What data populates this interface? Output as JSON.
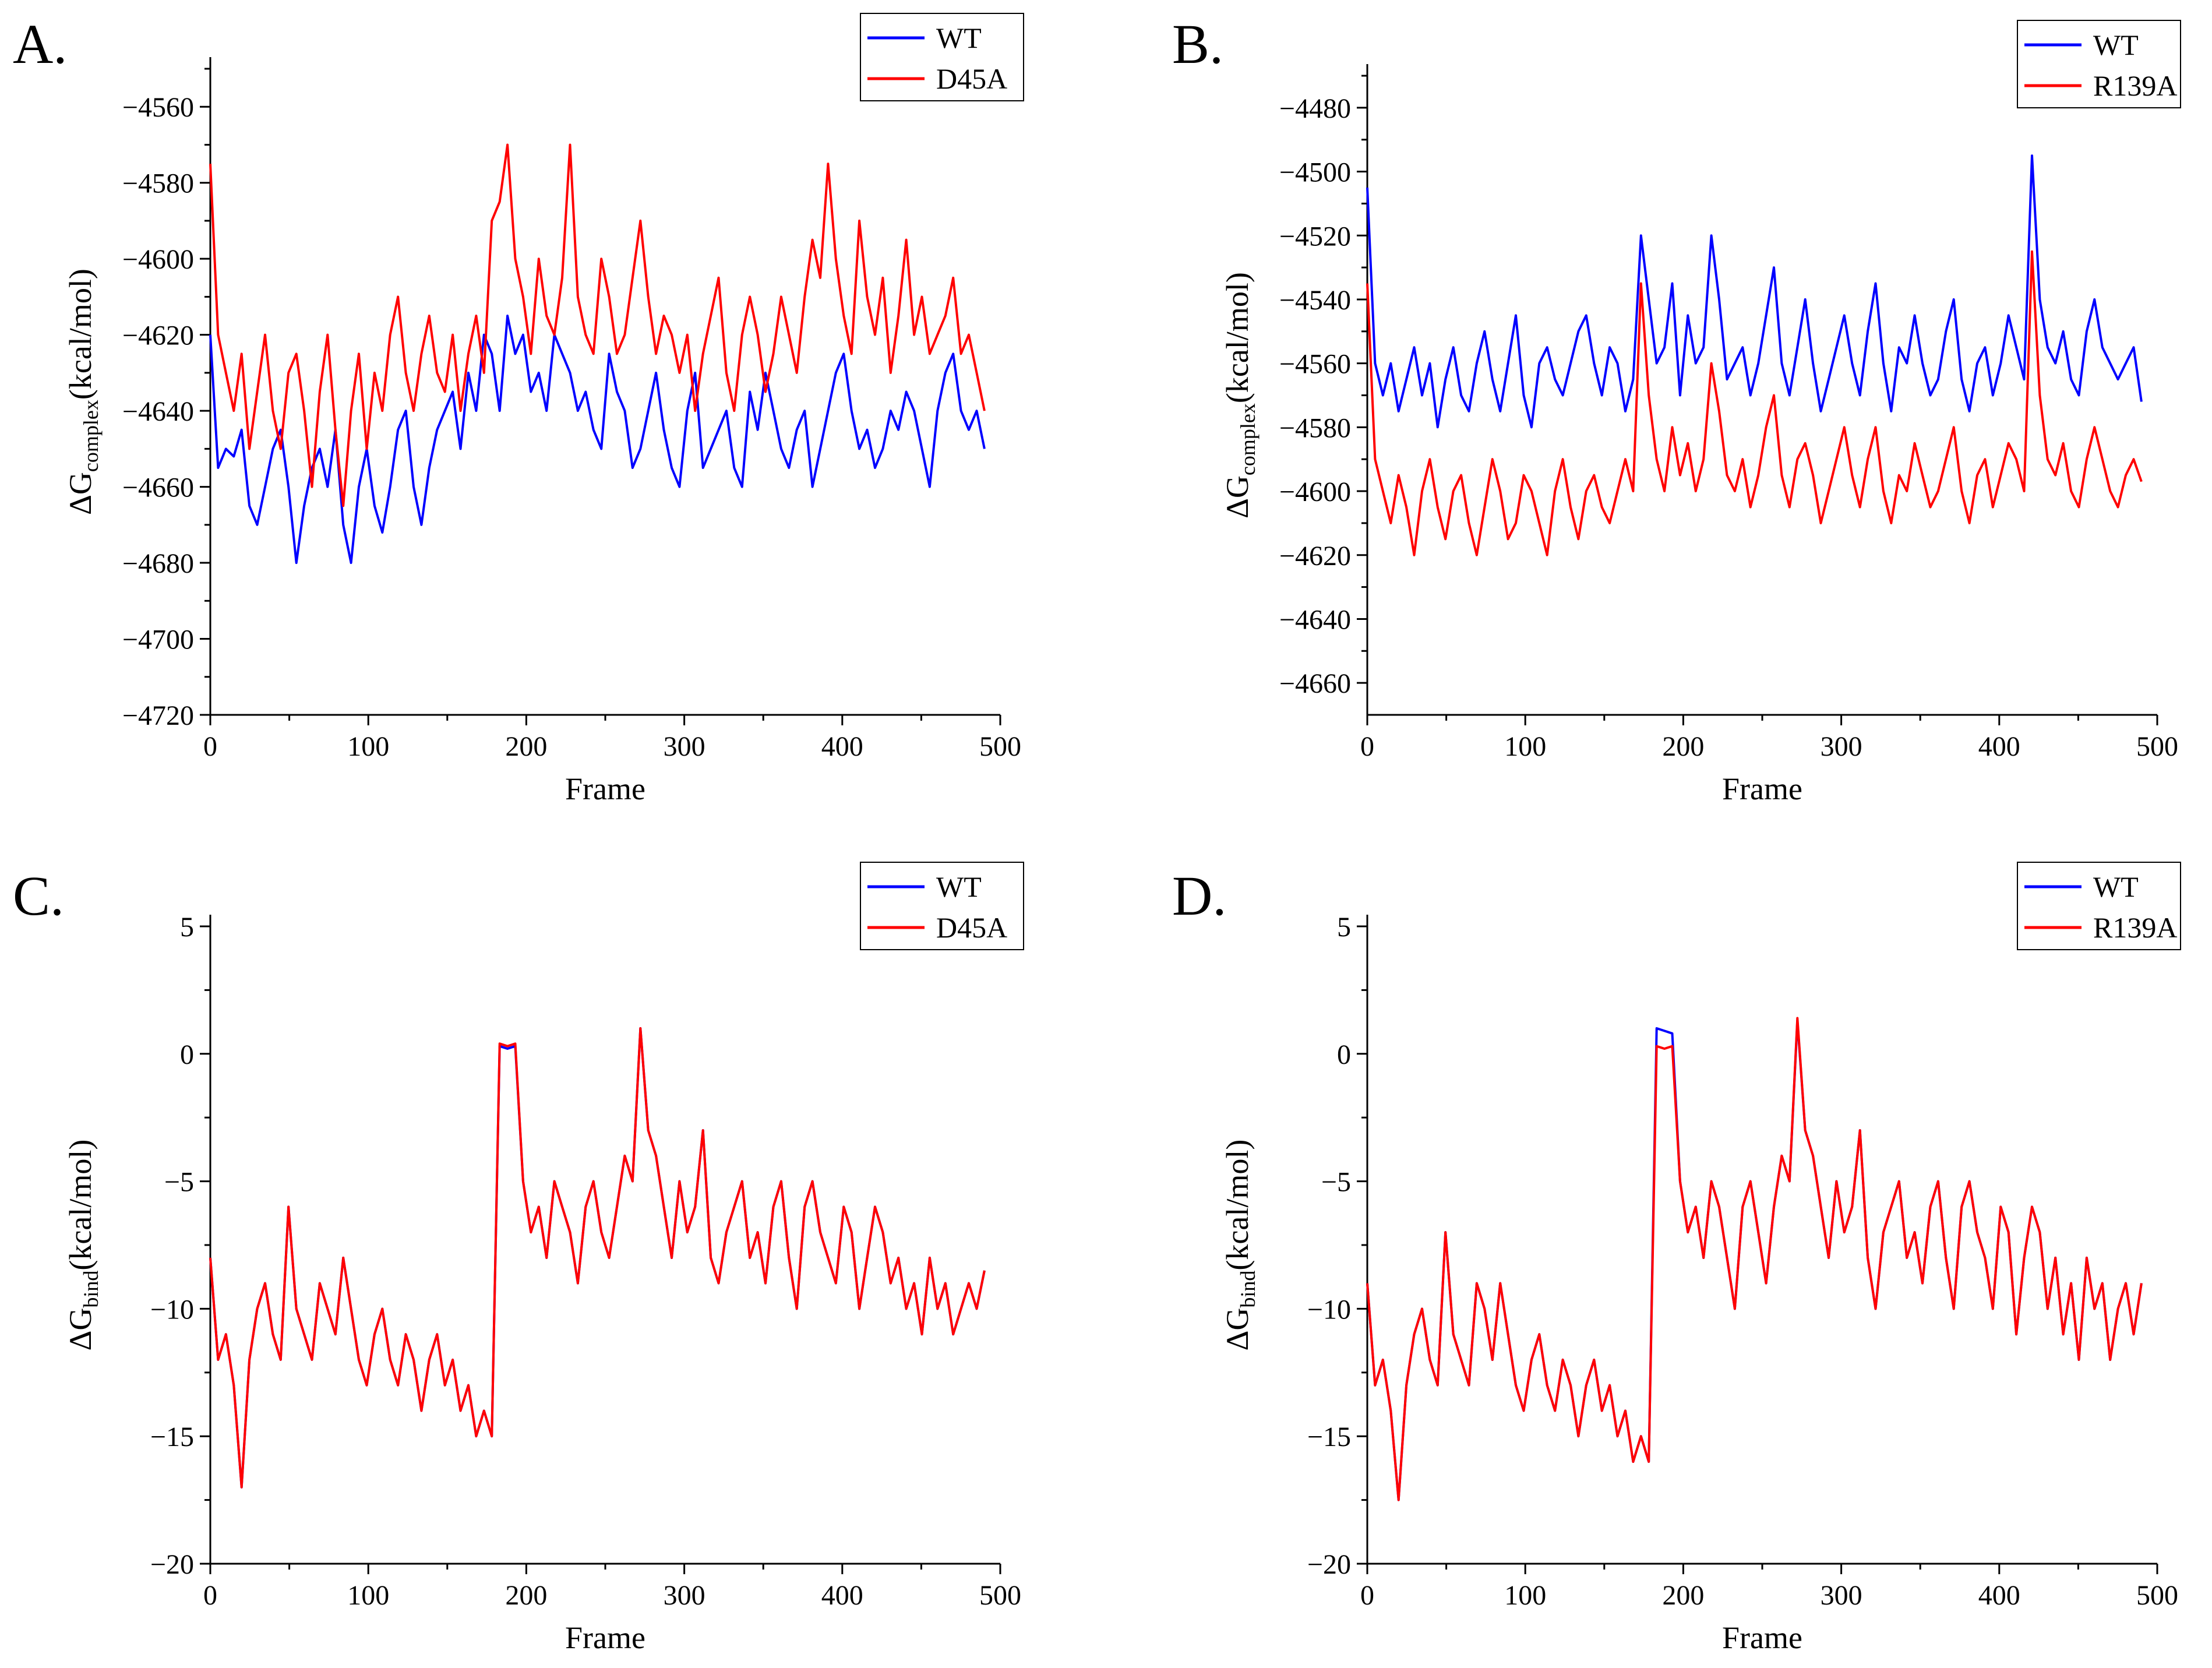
{
  "chart_data": [
    {
      "panel": "A.",
      "type": "line",
      "xlabel": "Frame",
      "ylabel": {
        "main": "ΔG",
        "sub": "complex",
        "unit": "(kcal/mol)"
      },
      "xlim": [
        0,
        500
      ],
      "ylim": [
        -4720,
        -4550
      ],
      "xticks": [
        0,
        100,
        200,
        300,
        400,
        500
      ],
      "yticks": [
        -4720,
        -4700,
        -4680,
        -4660,
        -4640,
        -4620,
        -4600,
        -4580,
        -4560
      ],
      "legend": "top-right",
      "series": [
        {
          "name": "WT",
          "color": "#0000ff",
          "x_start": 0,
          "x_end": 490,
          "values": [
            -4620,
            -4655,
            -4650,
            -4652,
            -4645,
            -4665,
            -4670,
            -4660,
            -4650,
            -4645,
            -4660,
            -4680,
            -4665,
            -4655,
            -4650,
            -4660,
            -4645,
            -4670,
            -4680,
            -4660,
            -4650,
            -4665,
            -4672,
            -4660,
            -4645,
            -4640,
            -4660,
            -4670,
            -4655,
            -4645,
            -4640,
            -4635,
            -4650,
            -4630,
            -4640,
            -4620,
            -4625,
            -4640,
            -4615,
            -4625,
            -4620,
            -4635,
            -4630,
            -4640,
            -4620,
            -4625,
            -4630,
            -4640,
            -4635,
            -4645,
            -4650,
            -4625,
            -4635,
            -4640,
            -4655,
            -4650,
            -4640,
            -4630,
            -4645,
            -4655,
            -4660,
            -4640,
            -4630,
            -4655,
            -4650,
            -4645,
            -4640,
            -4655,
            -4660,
            -4635,
            -4645,
            -4630,
            -4640,
            -4650,
            -4655,
            -4645,
            -4640,
            -4660,
            -4650,
            -4640,
            -4630,
            -4625,
            -4640,
            -4650,
            -4645,
            -4655,
            -4650,
            -4640,
            -4645,
            -4635,
            -4640,
            -4650,
            -4660,
            -4640,
            -4630,
            -4625,
            -4640,
            -4645,
            -4640,
            -4650
          ]
        },
        {
          "name": "D45A",
          "color": "#ff0000",
          "x_start": 0,
          "x_end": 490,
          "values": [
            -4575,
            -4620,
            -4630,
            -4640,
            -4625,
            -4650,
            -4635,
            -4620,
            -4640,
            -4650,
            -4630,
            -4625,
            -4640,
            -4660,
            -4635,
            -4620,
            -4645,
            -4665,
            -4640,
            -4625,
            -4650,
            -4630,
            -4640,
            -4620,
            -4610,
            -4630,
            -4640,
            -4625,
            -4615,
            -4630,
            -4635,
            -4620,
            -4640,
            -4625,
            -4615,
            -4630,
            -4590,
            -4585,
            -4570,
            -4600,
            -4610,
            -4625,
            -4600,
            -4615,
            -4620,
            -4605,
            -4570,
            -4610,
            -4620,
            -4625,
            -4600,
            -4610,
            -4625,
            -4620,
            -4605,
            -4590,
            -4610,
            -4625,
            -4615,
            -4620,
            -4630,
            -4620,
            -4640,
            -4625,
            -4615,
            -4605,
            -4630,
            -4640,
            -4620,
            -4610,
            -4620,
            -4635,
            -4625,
            -4610,
            -4620,
            -4630,
            -4610,
            -4595,
            -4605,
            -4575,
            -4600,
            -4615,
            -4625,
            -4590,
            -4610,
            -4620,
            -4605,
            -4630,
            -4615,
            -4595,
            -4620,
            -4610,
            -4625,
            -4620,
            -4615,
            -4605,
            -4625,
            -4620,
            -4630,
            -4640
          ]
        }
      ]
    },
    {
      "panel": "B.",
      "type": "line",
      "xlabel": "Frame",
      "ylabel": {
        "main": "ΔG",
        "sub": "complex",
        "unit": "(kcal/mol)"
      },
      "xlim": [
        0,
        500
      ],
      "ylim": [
        -4670,
        -4470
      ],
      "xticks": [
        0,
        100,
        200,
        300,
        400,
        500
      ],
      "yticks": [
        -4660,
        -4640,
        -4620,
        -4600,
        -4580,
        -4560,
        -4540,
        -4520,
        -4500,
        -4480
      ],
      "legend": "top-right",
      "series": [
        {
          "name": "WT",
          "color": "#0000ff",
          "x_start": 0,
          "x_end": 490,
          "values": [
            -4505,
            -4560,
            -4570,
            -4560,
            -4575,
            -4565,
            -4555,
            -4570,
            -4560,
            -4580,
            -4565,
            -4555,
            -4570,
            -4575,
            -4560,
            -4550,
            -4565,
            -4575,
            -4560,
            -4545,
            -4570,
            -4580,
            -4560,
            -4555,
            -4565,
            -4570,
            -4560,
            -4550,
            -4545,
            -4560,
            -4570,
            -4555,
            -4560,
            -4575,
            -4565,
            -4520,
            -4540,
            -4560,
            -4555,
            -4535,
            -4570,
            -4545,
            -4560,
            -4555,
            -4520,
            -4540,
            -4565,
            -4560,
            -4555,
            -4570,
            -4560,
            -4545,
            -4530,
            -4560,
            -4570,
            -4555,
            -4540,
            -4560,
            -4575,
            -4565,
            -4555,
            -4545,
            -4560,
            -4570,
            -4550,
            -4535,
            -4560,
            -4575,
            -4555,
            -4560,
            -4545,
            -4560,
            -4570,
            -4565,
            -4550,
            -4540,
            -4565,
            -4575,
            -4560,
            -4555,
            -4570,
            -4560,
            -4545,
            -4555,
            -4565,
            -4495,
            -4540,
            -4555,
            -4560,
            -4550,
            -4565,
            -4570,
            -4550,
            -4540,
            -4555,
            -4560,
            -4565,
            -4560,
            -4555,
            -4572
          ]
        },
        {
          "name": "R139A",
          "color": "#ff0000",
          "x_start": 0,
          "x_end": 490,
          "values": [
            -4535,
            -4590,
            -4600,
            -4610,
            -4595,
            -4605,
            -4620,
            -4600,
            -4590,
            -4605,
            -4615,
            -4600,
            -4595,
            -4610,
            -4620,
            -4605,
            -4590,
            -4600,
            -4615,
            -4610,
            -4595,
            -4600,
            -4610,
            -4620,
            -4600,
            -4590,
            -4605,
            -4615,
            -4600,
            -4595,
            -4605,
            -4610,
            -4600,
            -4590,
            -4600,
            -4535,
            -4570,
            -4590,
            -4600,
            -4580,
            -4595,
            -4585,
            -4600,
            -4590,
            -4560,
            -4575,
            -4595,
            -4600,
            -4590,
            -4605,
            -4595,
            -4580,
            -4570,
            -4595,
            -4605,
            -4590,
            -4585,
            -4595,
            -4610,
            -4600,
            -4590,
            -4580,
            -4595,
            -4605,
            -4590,
            -4580,
            -4600,
            -4610,
            -4595,
            -4600,
            -4585,
            -4595,
            -4605,
            -4600,
            -4590,
            -4580,
            -4600,
            -4610,
            -4595,
            -4590,
            -4605,
            -4595,
            -4585,
            -4590,
            -4600,
            -4525,
            -4570,
            -4590,
            -4595,
            -4585,
            -4600,
            -4605,
            -4590,
            -4580,
            -4590,
            -4600,
            -4605,
            -4595,
            -4590,
            -4597
          ]
        }
      ]
    },
    {
      "panel": "C.",
      "type": "line",
      "xlabel": "Frame",
      "ylabel": {
        "main": "ΔG",
        "sub": "bind",
        "unit": "(kcal/mol)"
      },
      "xlim": [
        0,
        500
      ],
      "ylim": [
        -20,
        5
      ],
      "xticks": [
        0,
        100,
        200,
        300,
        400,
        500
      ],
      "yticks": [
        -20,
        -15,
        -10,
        -5,
        0,
        5
      ],
      "legend": "top-right",
      "series": [
        {
          "name": "WT",
          "color": "#0000ff",
          "x_start": 0,
          "x_end": 490,
          "values": [
            -8,
            -12,
            -11,
            -13,
            -17,
            -12,
            -10,
            -9,
            -11,
            -12,
            -6,
            -10,
            -11,
            -12,
            -9,
            -10,
            -11,
            -8,
            -10,
            -12,
            -13,
            -11,
            -10,
            -12,
            -13,
            -11,
            -12,
            -14,
            -12,
            -11,
            -13,
            -12,
            -14,
            -13,
            -15,
            -14,
            -15,
            0.3,
            0.2,
            0.3,
            -5,
            -7,
            -6,
            -8,
            -5,
            -6,
            -7,
            -9,
            -6,
            -5,
            -7,
            -8,
            -6,
            -4,
            -5,
            1,
            -3,
            -4,
            -6,
            -8,
            -5,
            -7,
            -6,
            -3,
            -8,
            -9,
            -7,
            -6,
            -5,
            -8,
            -7,
            -9,
            -6,
            -5,
            -8,
            -10,
            -6,
            -5,
            -7,
            -8,
            -9,
            -6,
            -7,
            -10,
            -8,
            -6,
            -7,
            -9,
            -8,
            -10,
            -9,
            -11,
            -8,
            -10,
            -9,
            -11,
            -10,
            -9,
            -10,
            -8.5
          ]
        },
        {
          "name": "D45A",
          "color": "#ff0000",
          "x_start": 0,
          "x_end": 490,
          "values": [
            -8,
            -12,
            -11,
            -13,
            -17,
            -12,
            -10,
            -9,
            -11,
            -12,
            -6,
            -10,
            -11,
            -12,
            -9,
            -10,
            -11,
            -8,
            -10,
            -12,
            -13,
            -11,
            -10,
            -12,
            -13,
            -11,
            -12,
            -14,
            -12,
            -11,
            -13,
            -12,
            -14,
            -13,
            -15,
            -14,
            -15,
            0.4,
            0.3,
            0.4,
            -5,
            -7,
            -6,
            -8,
            -5,
            -6,
            -7,
            -9,
            -6,
            -5,
            -7,
            -8,
            -6,
            -4,
            -5,
            1,
            -3,
            -4,
            -6,
            -8,
            -5,
            -7,
            -6,
            -3,
            -8,
            -9,
            -7,
            -6,
            -5,
            -8,
            -7,
            -9,
            -6,
            -5,
            -8,
            -10,
            -6,
            -5,
            -7,
            -8,
            -9,
            -6,
            -7,
            -10,
            -8,
            -6,
            -7,
            -9,
            -8,
            -10,
            -9,
            -11,
            -8,
            -10,
            -9,
            -11,
            -10,
            -9,
            -10,
            -8.5
          ]
        }
      ]
    },
    {
      "panel": "D.",
      "type": "line",
      "xlabel": "Frame",
      "ylabel": {
        "main": "ΔG",
        "sub": "bind",
        "unit": "(kcal/mol)"
      },
      "xlim": [
        0,
        500
      ],
      "ylim": [
        -20,
        5
      ],
      "xticks": [
        0,
        100,
        200,
        300,
        400,
        500
      ],
      "yticks": [
        -20,
        -15,
        -10,
        -5,
        0,
        5
      ],
      "legend": "top-right",
      "series": [
        {
          "name": "WT",
          "color": "#0000ff",
          "x_start": 0,
          "x_end": 490,
          "values": [
            -9,
            -13,
            -12,
            -14,
            -17.5,
            -13,
            -11,
            -10,
            -12,
            -13,
            -7,
            -11,
            -12,
            -13,
            -9,
            -10,
            -12,
            -9,
            -11,
            -13,
            -14,
            -12,
            -11,
            -13,
            -14,
            -12,
            -13,
            -15,
            -13,
            -12,
            -14,
            -13,
            -15,
            -14,
            -16,
            -15,
            -16,
            1,
            0.9,
            0.8,
            -5,
            -7,
            -6,
            -8,
            -5,
            -6,
            -8,
            -10,
            -6,
            -5,
            -7,
            -9,
            -6,
            -4,
            -5,
            1.3,
            -3,
            -4,
            -6,
            -8,
            -5,
            -7,
            -6,
            -3,
            -8,
            -10,
            -7,
            -6,
            -5,
            -8,
            -7,
            -9,
            -6,
            -5,
            -8,
            -10,
            -6,
            -5,
            -7,
            -8,
            -10,
            -6,
            -7,
            -11,
            -8,
            -6,
            -7,
            -10,
            -8,
            -11,
            -9,
            -12,
            -8,
            -10,
            -9,
            -12,
            -10,
            -9,
            -11,
            -9
          ]
        },
        {
          "name": "R139A",
          "color": "#ff0000",
          "x_start": 0,
          "x_end": 490,
          "values": [
            -9,
            -13,
            -12,
            -14,
            -17.5,
            -13,
            -11,
            -10,
            -12,
            -13,
            -7,
            -11,
            -12,
            -13,
            -9,
            -10,
            -12,
            -9,
            -11,
            -13,
            -14,
            -12,
            -11,
            -13,
            -14,
            -12,
            -13,
            -15,
            -13,
            -12,
            -14,
            -13,
            -15,
            -14,
            -16,
            -15,
            -16,
            0.3,
            0.2,
            0.3,
            -5,
            -7,
            -6,
            -8,
            -5,
            -6,
            -8,
            -10,
            -6,
            -5,
            -7,
            -9,
            -6,
            -4,
            -5,
            1.4,
            -3,
            -4,
            -6,
            -8,
            -5,
            -7,
            -6,
            -3,
            -8,
            -10,
            -7,
            -6,
            -5,
            -8,
            -7,
            -9,
            -6,
            -5,
            -8,
            -10,
            -6,
            -5,
            -7,
            -8,
            -10,
            -6,
            -7,
            -11,
            -8,
            -6,
            -7,
            -10,
            -8,
            -11,
            -9,
            -12,
            -8,
            -10,
            -9,
            -12,
            -10,
            -9,
            -11,
            -9
          ]
        }
      ]
    }
  ]
}
